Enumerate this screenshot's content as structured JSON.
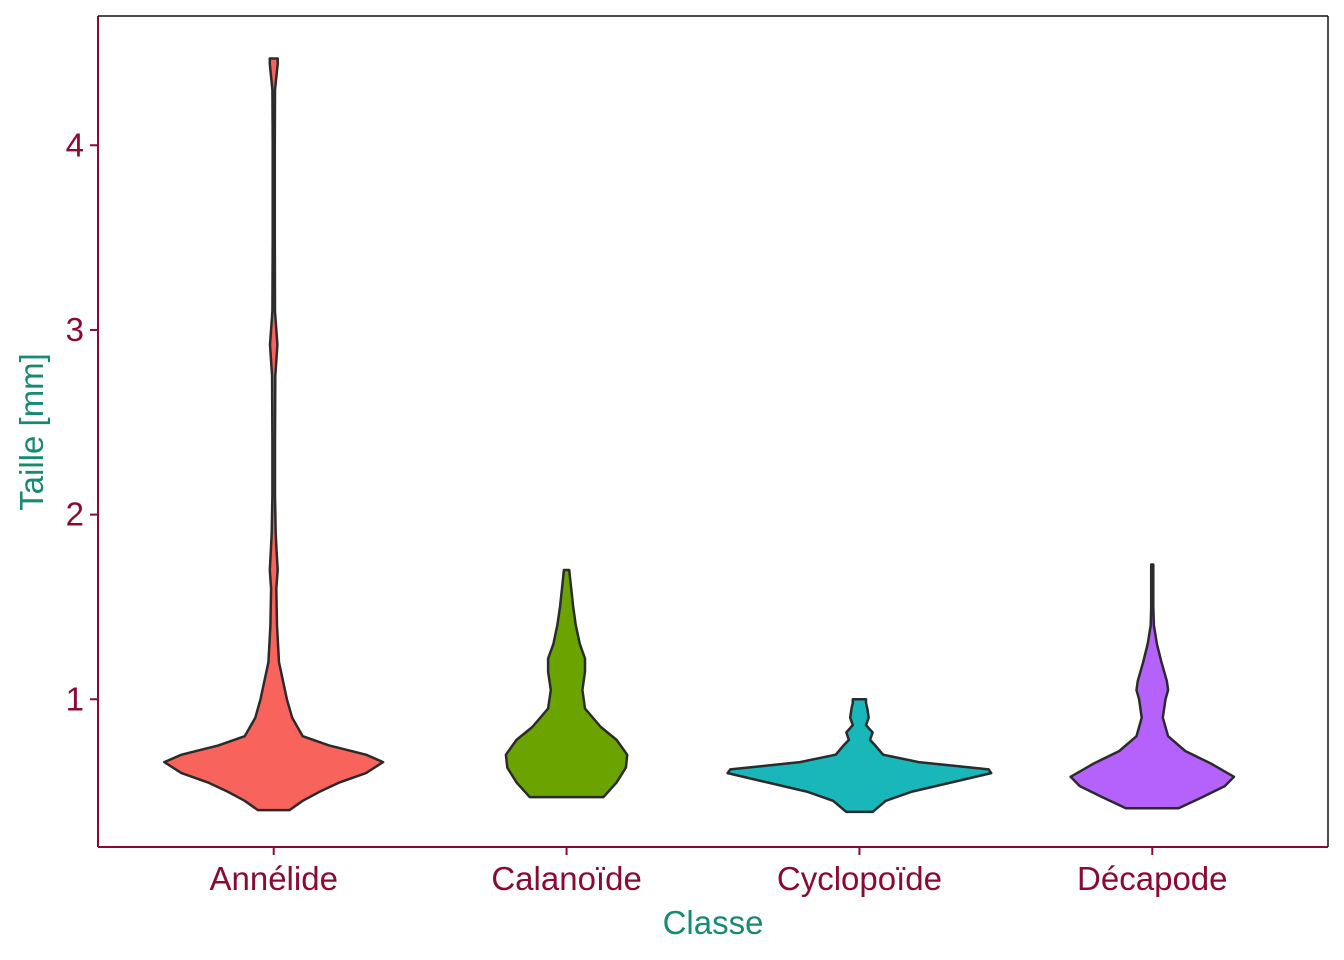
{
  "chart_data": {
    "type": "violin",
    "xlabel": "Classe",
    "ylabel": "Taille  [mm]",
    "categories": [
      "Annélide",
      "Calanoïde",
      "Cyclopoïde",
      "Décapode"
    ],
    "yticks": [
      1,
      2,
      3,
      4
    ],
    "ylim": [
      0.2,
      4.7
    ],
    "grid": false,
    "colors": {
      "axis_line": "#8B0A32",
      "tick_label": "#8B0A32",
      "axis_title": "#168A73",
      "violin_outline": "#2B2B2B",
      "Annélide": "#F8645C",
      "Calanoïde": "#6BA300",
      "Cyclopoïde": "#19B6BA",
      "Décapode": "#B462FB"
    },
    "violins": [
      {
        "category": "Annélide",
        "min": 0.4,
        "max": 4.47,
        "profile": [
          [
            0.4,
            0.12
          ],
          [
            0.45,
            0.22
          ],
          [
            0.5,
            0.35
          ],
          [
            0.55,
            0.5
          ],
          [
            0.6,
            0.7
          ],
          [
            0.66,
            0.83
          ],
          [
            0.7,
            0.7
          ],
          [
            0.75,
            0.42
          ],
          [
            0.8,
            0.22
          ],
          [
            0.9,
            0.14
          ],
          [
            1.0,
            0.1
          ],
          [
            1.2,
            0.04
          ],
          [
            1.4,
            0.025
          ],
          [
            1.6,
            0.02
          ],
          [
            1.7,
            0.03
          ],
          [
            1.8,
            0.022
          ],
          [
            1.9,
            0.015
          ],
          [
            2.1,
            0.01
          ],
          [
            2.4,
            0.01
          ],
          [
            2.75,
            0.012
          ],
          [
            2.92,
            0.028
          ],
          [
            3.1,
            0.01
          ],
          [
            3.5,
            0.008
          ],
          [
            4.0,
            0.008
          ],
          [
            4.3,
            0.01
          ],
          [
            4.44,
            0.03
          ],
          [
            4.47,
            0.03
          ]
        ]
      },
      {
        "category": "Calanoïde",
        "min": 0.47,
        "max": 1.7,
        "profile": [
          [
            0.47,
            0.28
          ],
          [
            0.55,
            0.38
          ],
          [
            0.63,
            0.45
          ],
          [
            0.7,
            0.46
          ],
          [
            0.78,
            0.38
          ],
          [
            0.85,
            0.26
          ],
          [
            0.95,
            0.14
          ],
          [
            1.05,
            0.12
          ],
          [
            1.15,
            0.14
          ],
          [
            1.22,
            0.14
          ],
          [
            1.3,
            0.1
          ],
          [
            1.4,
            0.07
          ],
          [
            1.5,
            0.05
          ],
          [
            1.6,
            0.035
          ],
          [
            1.7,
            0.02
          ]
        ]
      },
      {
        "category": "Cyclopoïde",
        "min": 0.39,
        "max": 1.0,
        "profile": [
          [
            0.39,
            0.1
          ],
          [
            0.45,
            0.2
          ],
          [
            0.5,
            0.4
          ],
          [
            0.55,
            0.7
          ],
          [
            0.6,
            1.0
          ],
          [
            0.62,
            0.98
          ],
          [
            0.66,
            0.45
          ],
          [
            0.7,
            0.18
          ],
          [
            0.75,
            0.12
          ],
          [
            0.78,
            0.08
          ],
          [
            0.82,
            0.1
          ],
          [
            0.86,
            0.05
          ],
          [
            0.9,
            0.07
          ],
          [
            0.95,
            0.06
          ],
          [
            0.98,
            0.05
          ],
          [
            1.0,
            0.05
          ]
        ]
      },
      {
        "category": "Décapode",
        "min": 0.41,
        "max": 1.73,
        "profile": [
          [
            0.41,
            0.2
          ],
          [
            0.47,
            0.38
          ],
          [
            0.53,
            0.55
          ],
          [
            0.58,
            0.62
          ],
          [
            0.65,
            0.45
          ],
          [
            0.72,
            0.25
          ],
          [
            0.8,
            0.12
          ],
          [
            0.9,
            0.08
          ],
          [
            1.0,
            0.1
          ],
          [
            1.05,
            0.12
          ],
          [
            1.1,
            0.11
          ],
          [
            1.2,
            0.07
          ],
          [
            1.3,
            0.035
          ],
          [
            1.4,
            0.012
          ],
          [
            1.5,
            0.008
          ],
          [
            1.73,
            0.008
          ]
        ]
      }
    ]
  }
}
